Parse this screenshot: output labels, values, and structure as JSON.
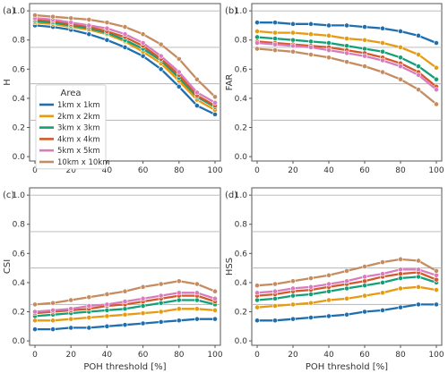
{
  "chart_data": [
    {
      "type": "line",
      "panel_label": "(a)",
      "ylabel": "H",
      "xlabel": "",
      "xlim": [
        0,
        100
      ],
      "ylim": [
        -0.03,
        1.05
      ],
      "x": [
        0,
        10,
        20,
        30,
        40,
        50,
        60,
        70,
        80,
        90,
        100
      ],
      "xticks": [
        0,
        20,
        40,
        60,
        80,
        100
      ],
      "yticks": [
        0.0,
        0.2,
        0.4,
        0.6,
        0.8,
        1.0
      ],
      "gridlines_y": [
        0.25,
        0.5,
        0.75,
        1.0
      ],
      "show_x_ticklabels": true,
      "legend": {
        "title": "Area",
        "placement": "lower-left"
      },
      "series": [
        {
          "name": "1km x 1km",
          "color": "#1f6fae",
          "values": [
            0.9,
            0.89,
            0.87,
            0.84,
            0.8,
            0.75,
            0.69,
            0.6,
            0.48,
            0.35,
            0.29
          ]
        },
        {
          "name": "2km x 2km",
          "color": "#e69b13",
          "values": [
            0.92,
            0.91,
            0.89,
            0.87,
            0.84,
            0.79,
            0.72,
            0.64,
            0.52,
            0.39,
            0.32
          ]
        },
        {
          "name": "3km x 3km",
          "color": "#13a079",
          "values": [
            0.93,
            0.92,
            0.9,
            0.88,
            0.85,
            0.8,
            0.74,
            0.66,
            0.54,
            0.41,
            0.34
          ]
        },
        {
          "name": "4km x 4km",
          "color": "#d4592a",
          "values": [
            0.94,
            0.93,
            0.91,
            0.89,
            0.86,
            0.82,
            0.76,
            0.67,
            0.56,
            0.42,
            0.35
          ]
        },
        {
          "name": "5km x 5km",
          "color": "#d97cbd",
          "values": [
            0.95,
            0.94,
            0.92,
            0.9,
            0.88,
            0.84,
            0.78,
            0.69,
            0.58,
            0.44,
            0.37
          ]
        },
        {
          "name": "10km x 10km",
          "color": "#c48c60",
          "values": [
            0.97,
            0.96,
            0.95,
            0.94,
            0.92,
            0.89,
            0.84,
            0.77,
            0.67,
            0.53,
            0.41
          ]
        }
      ]
    },
    {
      "type": "line",
      "panel_label": "(b)",
      "ylabel": "FAR",
      "xlabel": "",
      "xlim": [
        0,
        100
      ],
      "ylim": [
        -0.03,
        1.05
      ],
      "x": [
        0,
        10,
        20,
        30,
        40,
        50,
        60,
        70,
        80,
        90,
        100
      ],
      "xticks": [
        0,
        20,
        40,
        60,
        80,
        100
      ],
      "yticks": [
        0.0,
        0.2,
        0.4,
        0.6,
        0.8,
        1.0
      ],
      "gridlines_y": [
        0.25,
        0.5,
        0.75,
        1.0
      ],
      "show_x_ticklabels": true,
      "series": [
        {
          "name": "1km x 1km",
          "color": "#1f6fae",
          "values": [
            0.92,
            0.92,
            0.91,
            0.91,
            0.9,
            0.9,
            0.89,
            0.88,
            0.86,
            0.83,
            0.78
          ]
        },
        {
          "name": "2km x 2km",
          "color": "#e69b13",
          "values": [
            0.86,
            0.85,
            0.85,
            0.84,
            0.83,
            0.81,
            0.8,
            0.78,
            0.75,
            0.7,
            0.61
          ]
        },
        {
          "name": "3km x 3km",
          "color": "#13a079",
          "values": [
            0.82,
            0.81,
            0.8,
            0.79,
            0.78,
            0.76,
            0.74,
            0.72,
            0.68,
            0.62,
            0.53
          ]
        },
        {
          "name": "4km x 4km",
          "color": "#d4592a",
          "values": [
            0.79,
            0.78,
            0.77,
            0.76,
            0.75,
            0.73,
            0.71,
            0.68,
            0.64,
            0.58,
            0.48
          ]
        },
        {
          "name": "5km x 5km",
          "color": "#d97cbd",
          "values": [
            0.78,
            0.77,
            0.76,
            0.75,
            0.73,
            0.71,
            0.69,
            0.66,
            0.62,
            0.56,
            0.46
          ]
        },
        {
          "name": "10km x 10km",
          "color": "#c48c60",
          "values": [
            0.74,
            0.73,
            0.72,
            0.7,
            0.68,
            0.65,
            0.62,
            0.58,
            0.53,
            0.46,
            0.36
          ]
        }
      ]
    },
    {
      "type": "line",
      "panel_label": "(c)",
      "ylabel": "CSI",
      "xlabel": "POH threshold [%]",
      "xlim": [
        0,
        100
      ],
      "ylim": [
        -0.03,
        1.05
      ],
      "x": [
        0,
        10,
        20,
        30,
        40,
        50,
        60,
        70,
        80,
        90,
        100
      ],
      "xticks": [
        0,
        20,
        40,
        60,
        80,
        100
      ],
      "yticks": [
        0.0,
        0.2,
        0.4,
        0.6,
        0.8,
        1.0
      ],
      "gridlines_y": [
        0.25,
        0.5,
        0.75,
        1.0
      ],
      "show_x_ticklabels": true,
      "series": [
        {
          "name": "1km x 1km",
          "color": "#1f6fae",
          "values": [
            0.08,
            0.08,
            0.09,
            0.09,
            0.1,
            0.11,
            0.12,
            0.13,
            0.14,
            0.15,
            0.15
          ]
        },
        {
          "name": "2km x 2km",
          "color": "#e69b13",
          "values": [
            0.14,
            0.14,
            0.15,
            0.16,
            0.17,
            0.18,
            0.19,
            0.2,
            0.22,
            0.22,
            0.21
          ]
        },
        {
          "name": "3km x 3km",
          "color": "#13a079",
          "values": [
            0.17,
            0.18,
            0.19,
            0.2,
            0.21,
            0.22,
            0.24,
            0.26,
            0.28,
            0.28,
            0.25
          ]
        },
        {
          "name": "4km x 4km",
          "color": "#d4592a",
          "values": [
            0.19,
            0.2,
            0.21,
            0.22,
            0.24,
            0.25,
            0.27,
            0.29,
            0.31,
            0.31,
            0.27
          ]
        },
        {
          "name": "5km x 5km",
          "color": "#d97cbd",
          "values": [
            0.2,
            0.21,
            0.22,
            0.24,
            0.25,
            0.27,
            0.29,
            0.31,
            0.33,
            0.33,
            0.29
          ]
        },
        {
          "name": "10km x 10km",
          "color": "#c48c60",
          "values": [
            0.25,
            0.26,
            0.28,
            0.3,
            0.32,
            0.34,
            0.37,
            0.39,
            0.41,
            0.39,
            0.34
          ]
        }
      ]
    },
    {
      "type": "line",
      "panel_label": "(d)",
      "ylabel": "HSS",
      "xlabel": "POH threshold [%]",
      "xlim": [
        0,
        100
      ],
      "ylim": [
        -0.03,
        1.05
      ],
      "x": [
        0,
        10,
        20,
        30,
        40,
        50,
        60,
        70,
        80,
        90,
        100
      ],
      "xticks": [
        0,
        20,
        40,
        60,
        80,
        100
      ],
      "yticks": [
        0.0,
        0.2,
        0.4,
        0.6,
        0.8,
        1.0
      ],
      "gridlines_y": [
        0.25,
        0.5,
        0.75,
        1.0
      ],
      "show_x_ticklabels": true,
      "series": [
        {
          "name": "1km x 1km",
          "color": "#1f6fae",
          "values": [
            0.14,
            0.14,
            0.15,
            0.16,
            0.17,
            0.18,
            0.2,
            0.21,
            0.23,
            0.25,
            0.25
          ]
        },
        {
          "name": "2km x 2km",
          "color": "#e69b13",
          "values": [
            0.23,
            0.24,
            0.25,
            0.26,
            0.28,
            0.29,
            0.31,
            0.33,
            0.36,
            0.37,
            0.35
          ]
        },
        {
          "name": "3km x 3km",
          "color": "#13a079",
          "values": [
            0.28,
            0.29,
            0.31,
            0.32,
            0.34,
            0.36,
            0.38,
            0.4,
            0.43,
            0.44,
            0.4
          ]
        },
        {
          "name": "4km x 4km",
          "color": "#d4592a",
          "values": [
            0.31,
            0.32,
            0.34,
            0.35,
            0.37,
            0.39,
            0.41,
            0.44,
            0.46,
            0.47,
            0.42
          ]
        },
        {
          "name": "5km x 5km",
          "color": "#d97cbd",
          "values": [
            0.33,
            0.34,
            0.36,
            0.37,
            0.39,
            0.41,
            0.44,
            0.46,
            0.49,
            0.49,
            0.45
          ]
        },
        {
          "name": "10km x 10km",
          "color": "#c48c60",
          "values": [
            0.38,
            0.39,
            0.41,
            0.43,
            0.45,
            0.48,
            0.51,
            0.54,
            0.56,
            0.55,
            0.48
          ]
        }
      ]
    }
  ]
}
